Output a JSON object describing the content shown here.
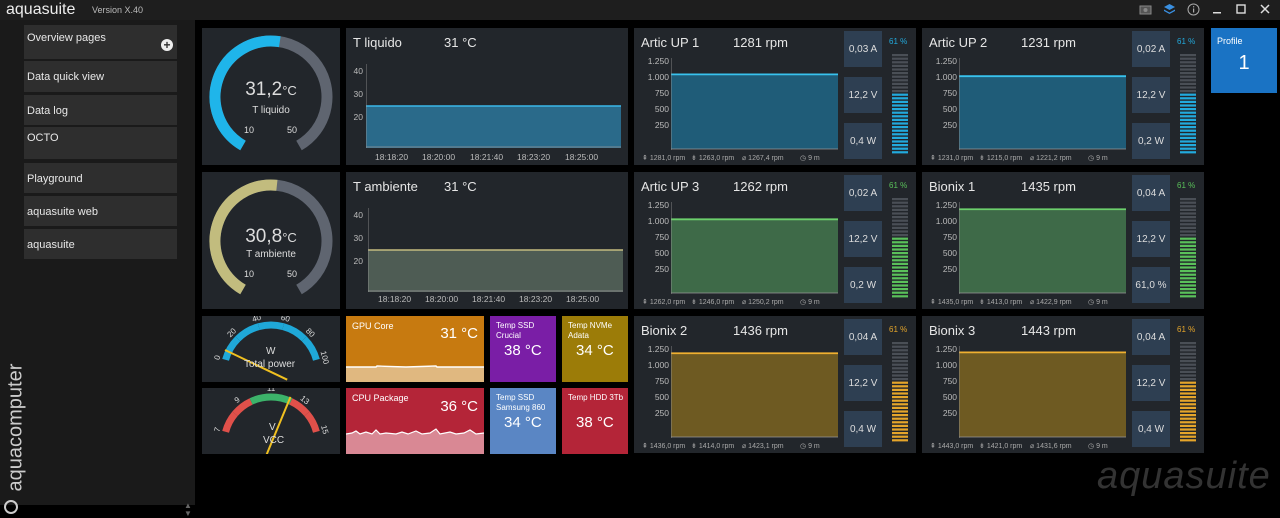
{
  "app": {
    "title": "aquasuite",
    "version": "Version X.40",
    "watermark": "aquasuite",
    "brand_vertical": "aquacomputer"
  },
  "titlebar_icons": [
    "camera-icon",
    "layers-icon",
    "info-icon",
    "minimize-icon",
    "maximize-icon",
    "close-icon"
  ],
  "sidebar": {
    "items": [
      {
        "label": "Overview pages"
      },
      {
        "label": "Data quick view"
      },
      {
        "label": "Data log"
      },
      {
        "label": "OCTO"
      },
      {
        "label": "Playground"
      },
      {
        "label": "aquasuite web"
      },
      {
        "label": "aquasuite"
      }
    ]
  },
  "gauges": [
    {
      "value": "31,2",
      "unit": "°C",
      "label": "T liquido",
      "min": "10",
      "max": "50",
      "fraction": 0.53,
      "color": "#1fb5ea"
    },
    {
      "value": "30,8",
      "unit": "°C",
      "label": "T ambiente",
      "min": "10",
      "max": "50",
      "fraction": 0.52,
      "color": "#c2bc7e"
    }
  ],
  "temp_charts": [
    {
      "title": "T liquido",
      "value": "31 °C",
      "yticks": [
        "40",
        "30",
        "20"
      ],
      "xticks": [
        "18:18:20",
        "18:20:00",
        "18:21:40",
        "18:23:20",
        "18:25:00"
      ],
      "line": "#3ab8ea",
      "fill": "#2a6a8a",
      "level": 0.5
    },
    {
      "title": "T ambiente",
      "value": "31 °C",
      "yticks": [
        "40",
        "30",
        "20"
      ],
      "xticks": [
        "18:18:20",
        "18:20:00",
        "18:21:40",
        "18:23:20",
        "18:25:00"
      ],
      "line": "#c4bc80",
      "fill": "#4e5c54",
      "level": 0.5
    }
  ],
  "fans": [
    {
      "name": "Artic UP 1",
      "rpm": "1281 rpm",
      "current": "0,03 A",
      "voltage": "12,2 V",
      "power": "0,4 W",
      "pct": "61 %",
      "stat1": "1281,0 rpm",
      "stat2": "1263,0 rpm",
      "stat3": "1267,4 rpm",
      "window": "9 m",
      "color": "#22aadd",
      "line": "#38c2ee",
      "fill": "#1f5c78",
      "level": 0.82,
      "pct_color": "#22aadd"
    },
    {
      "name": "Artic UP 2",
      "rpm": "1231 rpm",
      "current": "0,02 A",
      "voltage": "12,2 V",
      "power": "0,2 W",
      "pct": "61 %",
      "stat1": "1231,0 rpm",
      "stat2": "1215,0 rpm",
      "stat3": "1221,2 rpm",
      "window": "9 m",
      "color": "#22aadd",
      "line": "#38c2ee",
      "fill": "#1f5c78",
      "level": 0.8,
      "pct_color": "#22aadd"
    },
    {
      "name": "Artic UP 3",
      "rpm": "1262 rpm",
      "current": "0,02 A",
      "voltage": "12,2 V",
      "power": "0,2 W",
      "pct": "61 %",
      "stat1": "1262,0 rpm",
      "stat2": "1246,0 rpm",
      "stat3": "1250,2 rpm",
      "window": "9 m",
      "color": "#5ac15a",
      "line": "#6ccf6c",
      "fill": "#3e6a48",
      "level": 0.81,
      "pct_color": "#5ac15a"
    },
    {
      "name": "Bionix 1",
      "rpm": "1435 rpm",
      "current": "0,04 A",
      "voltage": "12,2 V",
      "power": "61,0 %",
      "pct": "61 %",
      "stat1": "1435,0 rpm",
      "stat2": "1413,0 rpm",
      "stat3": "1422,9 rpm",
      "window": "9 m",
      "color": "#5ac15a",
      "line": "#6ccf6c",
      "fill": "#3e6a48",
      "level": 0.92,
      "pct_color": "#5ac15a"
    },
    {
      "name": "Bionix 2",
      "rpm": "1436 rpm",
      "current": "0,04 A",
      "voltage": "12,2 V",
      "power": "0,4 W",
      "pct": "61 %",
      "stat1": "1436,0 rpm",
      "stat2": "1414,0 rpm",
      "stat3": "1423,1 rpm",
      "window": "9 m",
      "color": "#e5a52a",
      "line": "#f0b030",
      "fill": "#6e5a22",
      "level": 0.92,
      "pct_color": "#e5a52a"
    },
    {
      "name": "Bionix 3",
      "rpm": "1443 rpm",
      "current": "0,04 A",
      "voltage": "12,2 V",
      "power": "0,4 W",
      "pct": "61 %",
      "stat1": "1443,0 rpm",
      "stat2": "1421,0 rpm",
      "stat3": "1431,6 rpm",
      "window": "9 m",
      "color": "#e5a52a",
      "line": "#f0b030",
      "fill": "#6e5a22",
      "level": 0.93,
      "pct_color": "#e5a52a"
    }
  ],
  "fan_yticks": [
    "1.250",
    "1.000",
    "750",
    "500",
    "250"
  ],
  "dial_power": {
    "unit": "W",
    "label": "Total power",
    "ticks": [
      "0",
      "20",
      "40",
      "60",
      "80",
      "100"
    ],
    "value": 7
  },
  "dial_vcc": {
    "unit": "V",
    "label": "VCC",
    "ticks": [
      "7",
      "9",
      "11",
      "13",
      "15"
    ],
    "value": 12.2
  },
  "tiles": [
    {
      "label": "GPU Core",
      "value": "31 °C",
      "bg": "#c77a10"
    },
    {
      "label": "CPU Package",
      "value": "36 °C",
      "bg": "#b42538"
    },
    {
      "label": "Temp SSD Crucial",
      "value": "38 °C",
      "bg": "#7a1ea6"
    },
    {
      "label": "Temp NVMe Adata",
      "value": "34 °C",
      "bg": "#9c7c08"
    },
    {
      "label": "Temp SSD Samsung 860",
      "value": "34 °C",
      "bg": "#5a86c4"
    },
    {
      "label": "Temp HDD 3Tb",
      "value": "38 °C",
      "bg": "#b42538"
    }
  ],
  "profile": {
    "label": "Profile",
    "number": "1"
  }
}
